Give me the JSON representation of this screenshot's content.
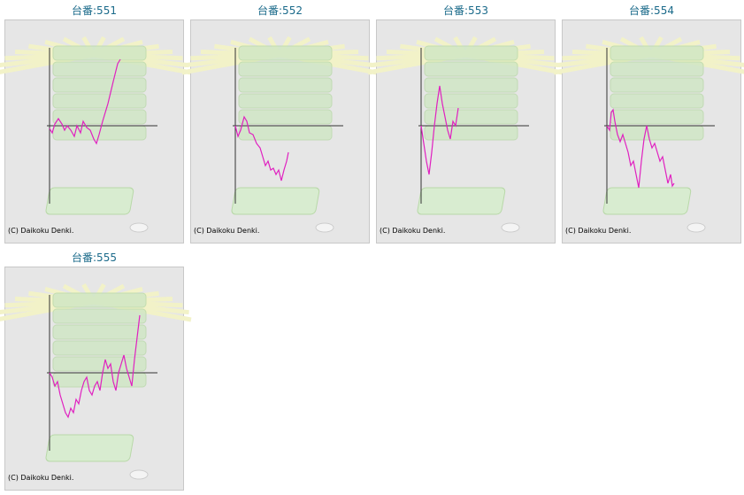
{
  "chart_data": [
    {
      "type": "line",
      "title": "台番:551",
      "credit": "(C) Daikoku Denki.",
      "color": "#e020c0",
      "xlim": [
        0,
        120
      ],
      "ylim": [
        -88,
        88
      ],
      "x": [
        0,
        3,
        6,
        10,
        14,
        17,
        20,
        24,
        28,
        31,
        35,
        38,
        42,
        46,
        50,
        53,
        56,
        60,
        66,
        72,
        77,
        80
      ],
      "values": [
        -3,
        -8,
        2,
        8,
        2,
        -5,
        0,
        -5,
        -12,
        0,
        -8,
        5,
        -2,
        -5,
        -15,
        -20,
        -10,
        5,
        25,
        50,
        70,
        75
      ]
    },
    {
      "type": "line",
      "title": "台番:552",
      "credit": "(C) Daikoku Denki.",
      "color": "#e020c0",
      "xlim": [
        0,
        120
      ],
      "ylim": [
        -88,
        88
      ],
      "x": [
        0,
        3,
        6,
        10,
        13,
        16,
        20,
        24,
        28,
        31,
        34,
        37,
        40,
        43,
        46,
        49,
        52,
        55,
        58,
        60
      ],
      "values": [
        0,
        -12,
        -5,
        10,
        5,
        -8,
        -10,
        -20,
        -25,
        -35,
        -45,
        -40,
        -50,
        -48,
        -55,
        -50,
        -62,
        -50,
        -40,
        -30
      ]
    },
    {
      "type": "line",
      "title": "台番:553",
      "credit": "(C) Daikoku Denki.",
      "color": "#e020c0",
      "xlim": [
        0,
        120
      ],
      "ylim": [
        -88,
        88
      ],
      "x": [
        0,
        3,
        6,
        9,
        12,
        15,
        18,
        21,
        24,
        27,
        30,
        33,
        36,
        39,
        42
      ],
      "values": [
        0,
        -20,
        -40,
        -55,
        -30,
        0,
        25,
        45,
        25,
        10,
        -5,
        -15,
        5,
        0,
        20
      ]
    },
    {
      "type": "line",
      "title": "台番:554",
      "credit": "(C) Daikoku Denki.",
      "color": "#e020c0",
      "xlim": [
        0,
        120
      ],
      "ylim": [
        -88,
        88
      ],
      "x": [
        0,
        3,
        5,
        7,
        9,
        12,
        15,
        18,
        21,
        24,
        27,
        30,
        33,
        36,
        39,
        42,
        45,
        48,
        51,
        54,
        57,
        60,
        63,
        66,
        69,
        72,
        74,
        76
      ],
      "values": [
        0,
        -5,
        15,
        18,
        5,
        -10,
        -18,
        -10,
        -20,
        -30,
        -45,
        -40,
        -55,
        -70,
        -40,
        -15,
        0,
        -15,
        -25,
        -20,
        -30,
        -40,
        -35,
        -50,
        -65,
        -55,
        -68,
        -65
      ]
    },
    {
      "type": "line",
      "title": "台番:555",
      "credit": "(C) Daikoku Denki.",
      "color": "#e020c0",
      "xlim": [
        0,
        120
      ],
      "ylim": [
        -88,
        88
      ],
      "x": [
        0,
        3,
        6,
        9,
        12,
        15,
        18,
        21,
        24,
        27,
        30,
        33,
        36,
        39,
        42,
        45,
        48,
        51,
        54,
        57,
        60,
        63,
        66,
        69,
        72,
        75,
        78,
        81,
        84,
        87,
        90,
        93,
        96,
        99,
        102
      ],
      "values": [
        0,
        -5,
        -15,
        -10,
        -25,
        -35,
        -45,
        -50,
        -40,
        -45,
        -30,
        -35,
        -20,
        -10,
        -5,
        -20,
        -25,
        -15,
        -10,
        -20,
        0,
        15,
        5,
        10,
        -10,
        -20,
        0,
        10,
        20,
        5,
        -5,
        -15,
        15,
        40,
        65
      ]
    }
  ]
}
